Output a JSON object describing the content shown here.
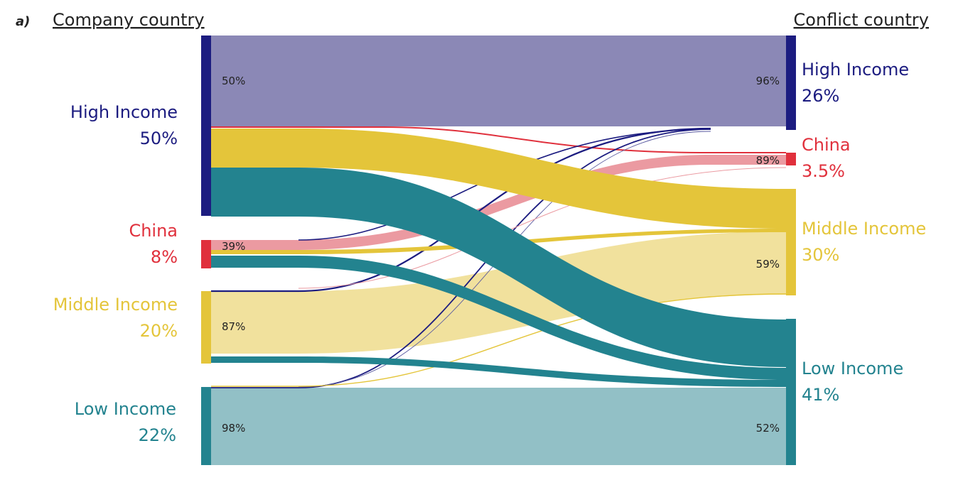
{
  "panel_tag": "a)",
  "left_heading": "Company country",
  "right_heading": "Conflict country",
  "colors": {
    "high": "#1c1c80",
    "china": "#e0303c",
    "middle": "#e4c53a",
    "low": "#23838f",
    "high_light": "#8b88b6",
    "china_light": "#eb9aa1",
    "middle_light": "#f1e19d",
    "low_light": "#92c0c6"
  },
  "left_nodes": [
    {
      "name": "High Income",
      "share": "50%"
    },
    {
      "name": "China",
      "share": "8%"
    },
    {
      "name": "Middle Income",
      "share": "20%"
    },
    {
      "name": "Low Income",
      "share": "22%"
    }
  ],
  "right_nodes": [
    {
      "name": "High Income",
      "share": "26%"
    },
    {
      "name": "China",
      "share": "3.5%"
    },
    {
      "name": "Middle Income",
      "share": "30%"
    },
    {
      "name": "Low Income",
      "share": "41%"
    }
  ],
  "left_pcts": [
    "50%",
    "39%",
    "87%",
    "98%"
  ],
  "right_pcts": [
    "96%",
    "89%",
    "59%",
    "52%"
  ]
}
